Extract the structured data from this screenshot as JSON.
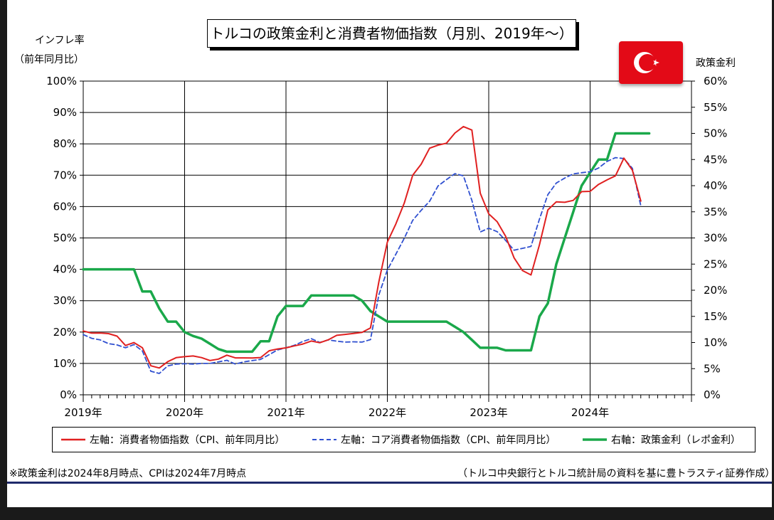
{
  "title": "トルコの政策金利と消費者物価指数（月別、2019年～）",
  "left_axis_title": [
    "インフレ率",
    "（前年同月比）"
  ],
  "right_axis_title": "政策金利",
  "legend": [
    {
      "label": "左軸：消費者物価指数（CPI、前年同月比）",
      "color": "#e02020",
      "style": "solid"
    },
    {
      "label": "左軸：コア消費者物価指数（CPI、前年同月比）",
      "color": "#3050d0",
      "style": "dashed"
    },
    {
      "label": "右軸：政策金利（レポ金利）",
      "color": "#1aa84a",
      "style": "solid"
    }
  ],
  "footnote_left": "※政策金利は2024年8月時点、CPIは2024年7月時点",
  "footnote_right": "（トルコ中央銀行とトルコ統計局の資料を基に豊トラスティ証券作成）",
  "flag": {
    "name": "turkey-flag-icon",
    "color": "#e30a17"
  },
  "chart_data": {
    "type": "line",
    "x_start": "2019-01",
    "x_end": "2025-01",
    "x_tick_labels": [
      "2019年",
      "2020年",
      "2021年",
      "2022年",
      "2023年",
      "2024年"
    ],
    "y_left": {
      "range": [
        0,
        100
      ],
      "tick_labels": [
        "0%",
        "10%",
        "20%",
        "30%",
        "40%",
        "50%",
        "60%",
        "70%",
        "80%",
        "90%",
        "100%"
      ]
    },
    "y_right": {
      "range": [
        0,
        60
      ],
      "tick_labels": [
        "0%",
        "5%",
        "10%",
        "15%",
        "20%",
        "25%",
        "30%",
        "35%",
        "40%",
        "45%",
        "50%",
        "55%",
        "60%"
      ]
    },
    "grid": true,
    "legend_position": "bottom",
    "series": [
      {
        "name": "左軸：消費者物価指数（CPI、前年同月比）",
        "axis": "left",
        "color": "#e02020",
        "dash": false,
        "x": [
          "2019-01",
          "2019-02",
          "2019-03",
          "2019-04",
          "2019-05",
          "2019-06",
          "2019-07",
          "2019-08",
          "2019-09",
          "2019-10",
          "2019-11",
          "2019-12",
          "2020-01",
          "2020-02",
          "2020-03",
          "2020-04",
          "2020-05",
          "2020-06",
          "2020-07",
          "2020-08",
          "2020-09",
          "2020-10",
          "2020-11",
          "2020-12",
          "2021-01",
          "2021-02",
          "2021-03",
          "2021-04",
          "2021-05",
          "2021-06",
          "2021-07",
          "2021-08",
          "2021-09",
          "2021-10",
          "2021-11",
          "2021-12",
          "2022-01",
          "2022-02",
          "2022-03",
          "2022-04",
          "2022-05",
          "2022-06",
          "2022-07",
          "2022-08",
          "2022-09",
          "2022-10",
          "2022-11",
          "2022-12",
          "2023-01",
          "2023-02",
          "2023-03",
          "2023-04",
          "2023-05",
          "2023-06",
          "2023-07",
          "2023-08",
          "2023-09",
          "2023-10",
          "2023-11",
          "2023-12",
          "2024-01",
          "2024-02",
          "2024-03",
          "2024-04",
          "2024-05",
          "2024-06",
          "2024-07"
        ],
        "values": [
          20.35,
          19.67,
          19.71,
          19.5,
          18.71,
          15.72,
          16.65,
          15.01,
          9.26,
          8.55,
          10.56,
          11.84,
          12.15,
          12.37,
          11.86,
          10.94,
          11.39,
          12.62,
          11.76,
          11.77,
          11.75,
          11.89,
          14.03,
          14.6,
          14.97,
          15.61,
          16.19,
          17.14,
          16.59,
          17.53,
          18.95,
          19.25,
          19.58,
          19.89,
          21.31,
          36.08,
          48.69,
          54.44,
          61.14,
          69.97,
          73.5,
          78.62,
          79.6,
          80.21,
          83.45,
          85.51,
          84.39,
          64.27,
          57.68,
          55.18,
          50.51,
          43.68,
          39.59,
          38.21,
          47.83,
          58.94,
          61.53,
          61.36,
          61.98,
          64.77,
          64.86,
          67.07,
          68.5,
          69.8,
          75.45,
          71.6,
          61.78
        ]
      },
      {
        "name": "左軸：コア消費者物価指数（CPI、前年同月比）",
        "axis": "left",
        "color": "#3050d0",
        "dash": true,
        "x": [
          "2019-01",
          "2019-02",
          "2019-03",
          "2019-04",
          "2019-05",
          "2019-06",
          "2019-07",
          "2019-08",
          "2019-09",
          "2019-10",
          "2019-11",
          "2019-12",
          "2020-01",
          "2020-02",
          "2020-03",
          "2020-04",
          "2020-05",
          "2020-06",
          "2020-07",
          "2020-08",
          "2020-09",
          "2020-10",
          "2020-11",
          "2020-12",
          "2021-01",
          "2021-02",
          "2021-03",
          "2021-04",
          "2021-05",
          "2021-06",
          "2021-07",
          "2021-08",
          "2021-09",
          "2021-10",
          "2021-11",
          "2021-12",
          "2022-01",
          "2022-02",
          "2022-03",
          "2022-04",
          "2022-05",
          "2022-06",
          "2022-07",
          "2022-08",
          "2022-09",
          "2022-10",
          "2022-11",
          "2022-12",
          "2023-01",
          "2023-02",
          "2023-03",
          "2023-04",
          "2023-05",
          "2023-06",
          "2023-07",
          "2023-08",
          "2023-09",
          "2023-10",
          "2023-11",
          "2023-12",
          "2024-01",
          "2024-02",
          "2024-03",
          "2024-04",
          "2024-05",
          "2024-06",
          "2024-07"
        ],
        "values": [
          19.2,
          18,
          17.5,
          16.3,
          15.9,
          15,
          16,
          14,
          7.5,
          6.8,
          9.2,
          9.8,
          9.9,
          9.8,
          10,
          10,
          10.5,
          11,
          9.8,
          10.5,
          10.9,
          11.3,
          12.8,
          14.3,
          15,
          15.8,
          17,
          17.9,
          16.7,
          17.5,
          17.1,
          16.8,
          16.9,
          16.8,
          17.6,
          31.9,
          39.8,
          44.8,
          49.9,
          55.6,
          58.8,
          61.7,
          66.6,
          68.6,
          70.5,
          69.8,
          62,
          51.9,
          53.1,
          52,
          49.2,
          46.1,
          46.7,
          47.3,
          56,
          63.8,
          67.5,
          69.1,
          70.4,
          70.8,
          71.1,
          72.3,
          74.4,
          75.6,
          75.3,
          72.2,
          60.2
        ]
      },
      {
        "name": "右軸：政策金利（レポ金利）",
        "axis": "right",
        "color": "#1aa84a",
        "dash": false,
        "x": [
          "2019-01",
          "2019-02",
          "2019-03",
          "2019-04",
          "2019-05",
          "2019-06",
          "2019-07",
          "2019-08",
          "2019-09",
          "2019-10",
          "2019-11",
          "2019-12",
          "2020-01",
          "2020-02",
          "2020-03",
          "2020-04",
          "2020-05",
          "2020-06",
          "2020-07",
          "2020-08",
          "2020-09",
          "2020-10",
          "2020-11",
          "2020-12",
          "2021-01",
          "2021-02",
          "2021-03",
          "2021-04",
          "2021-05",
          "2021-06",
          "2021-07",
          "2021-08",
          "2021-09",
          "2021-10",
          "2021-11",
          "2021-12",
          "2022-01",
          "2022-02",
          "2022-03",
          "2022-04",
          "2022-05",
          "2022-06",
          "2022-07",
          "2022-08",
          "2022-09",
          "2022-10",
          "2022-11",
          "2022-12",
          "2023-01",
          "2023-02",
          "2023-03",
          "2023-04",
          "2023-05",
          "2023-06",
          "2023-07",
          "2023-08",
          "2023-09",
          "2023-10",
          "2023-11",
          "2023-12",
          "2024-01",
          "2024-02",
          "2024-03",
          "2024-04",
          "2024-05",
          "2024-06",
          "2024-07",
          "2024-08"
        ],
        "values": [
          24,
          24,
          24,
          24,
          24,
          24,
          24,
          19.75,
          19.75,
          16.5,
          14,
          14,
          12,
          11.25,
          10.75,
          9.75,
          8.75,
          8.25,
          8.25,
          8.25,
          8.25,
          10.25,
          10.25,
          15,
          17,
          17,
          17,
          19,
          19,
          19,
          19,
          19,
          19,
          18,
          16,
          15,
          14,
          14,
          14,
          14,
          14,
          14,
          14,
          14,
          13,
          12,
          10.5,
          9,
          9,
          9,
          8.5,
          8.5,
          8.5,
          8.5,
          15,
          17.5,
          25,
          30,
          35,
          40,
          42.5,
          45,
          45,
          50,
          50,
          50,
          50,
          50
        ]
      }
    ]
  }
}
